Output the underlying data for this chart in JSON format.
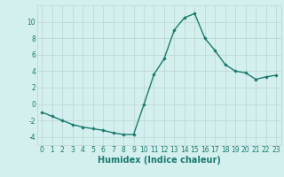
{
  "x": [
    0,
    1,
    2,
    3,
    4,
    5,
    6,
    7,
    8,
    9,
    10,
    11,
    12,
    13,
    14,
    15,
    16,
    17,
    18,
    19,
    20,
    21,
    22,
    23
  ],
  "y": [
    -1.0,
    -1.5,
    -2.0,
    -2.5,
    -2.8,
    -3.0,
    -3.2,
    -3.5,
    -3.7,
    -3.7,
    -0.1,
    3.6,
    5.5,
    9.0,
    10.5,
    11.0,
    8.0,
    6.5,
    4.8,
    4.0,
    3.8,
    3.0,
    3.3,
    3.5
  ],
  "line_color": "#1a7a6e",
  "marker": "D",
  "marker_size": 1.8,
  "linewidth": 1.0,
  "xlabel": "Humidex (Indice chaleur)",
  "xlabel_fontsize": 7,
  "xlabel_color": "#1a7a6e",
  "yticks": [
    -4,
    -2,
    0,
    2,
    4,
    6,
    8,
    10
  ],
  "xticks": [
    0,
    1,
    2,
    3,
    4,
    5,
    6,
    7,
    8,
    9,
    10,
    11,
    12,
    13,
    14,
    15,
    16,
    17,
    18,
    19,
    20,
    21,
    22,
    23
  ],
  "xtick_labels": [
    "0",
    "1",
    "2",
    "3",
    "4",
    "5",
    "6",
    "7",
    "8",
    "9",
    "10",
    "11",
    "12",
    "13",
    "14",
    "15",
    "16",
    "17",
    "18",
    "19",
    "20",
    "21",
    "22",
    "23"
  ],
  "ylim": [
    -5,
    12
  ],
  "xlim": [
    -0.5,
    23.5
  ],
  "background_color": "#d4f0ee",
  "grid_color": "#c0d8d4",
  "tick_fontsize": 5.5,
  "tick_color": "#1a7a6e"
}
